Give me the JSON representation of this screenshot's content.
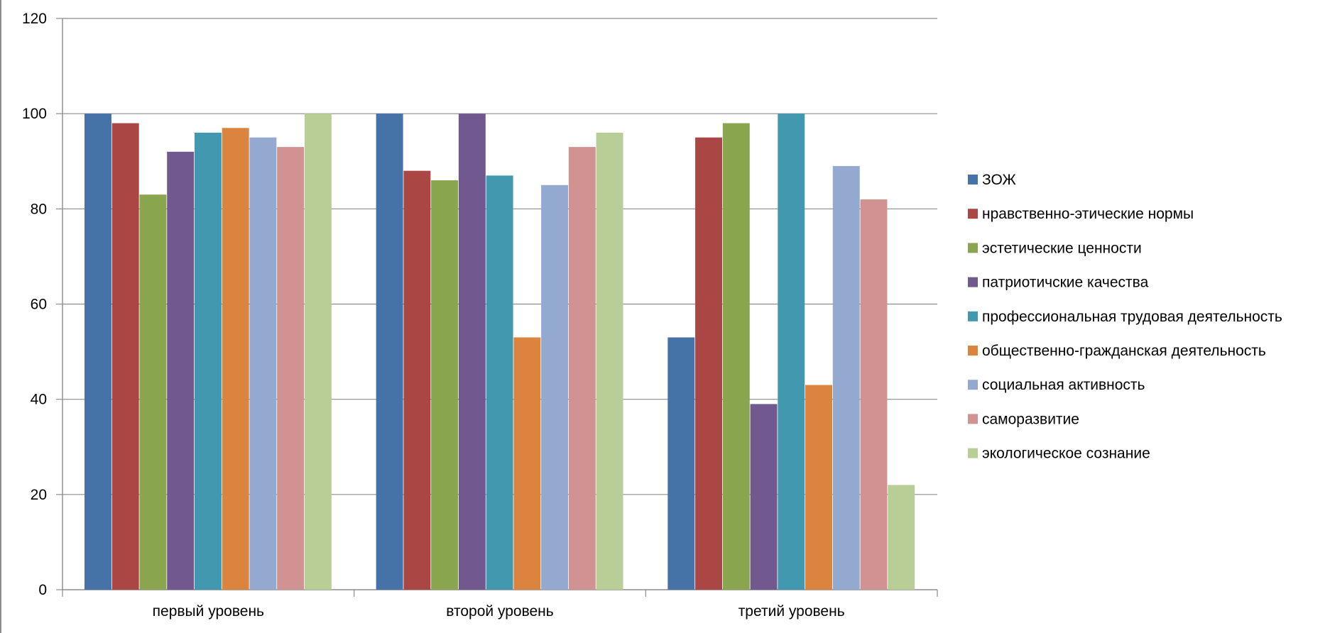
{
  "chart_data": {
    "type": "bar",
    "title": "",
    "xlabel": "",
    "ylabel": "",
    "ylim": [
      0,
      120
    ],
    "yticks": [
      0,
      20,
      40,
      60,
      80,
      100,
      120
    ],
    "grid": true,
    "legend_position": "right",
    "categories": [
      "первый уровень",
      "второй уровень",
      "третий уровень"
    ],
    "series": [
      {
        "name": "ЗОЖ",
        "color": "#4572A7",
        "values": [
          100,
          100,
          53
        ]
      },
      {
        "name": "нравственно-этические нормы",
        "color": "#AA4643",
        "values": [
          98,
          88,
          95
        ]
      },
      {
        "name": "эстетические ценности",
        "color": "#89A54E",
        "values": [
          83,
          86,
          98
        ]
      },
      {
        "name": "патриотичские качества",
        "color": "#71588F",
        "values": [
          92,
          100,
          39
        ]
      },
      {
        "name": "профессиональная трудовая деятельность",
        "color": "#4198AF",
        "values": [
          96,
          87,
          100
        ]
      },
      {
        "name": "общественно-гражданская деятельность",
        "color": "#DB843D",
        "values": [
          97,
          53,
          43
        ]
      },
      {
        "name": "социальная активность",
        "color": "#93A9CF",
        "values": [
          95,
          85,
          89
        ]
      },
      {
        "name": "саморазвитие",
        "color": "#D19392",
        "values": [
          93,
          93,
          82
        ]
      },
      {
        "name": "экологическое сознание",
        "color": "#B9CD96",
        "values": [
          100,
          96,
          22
        ]
      }
    ]
  }
}
